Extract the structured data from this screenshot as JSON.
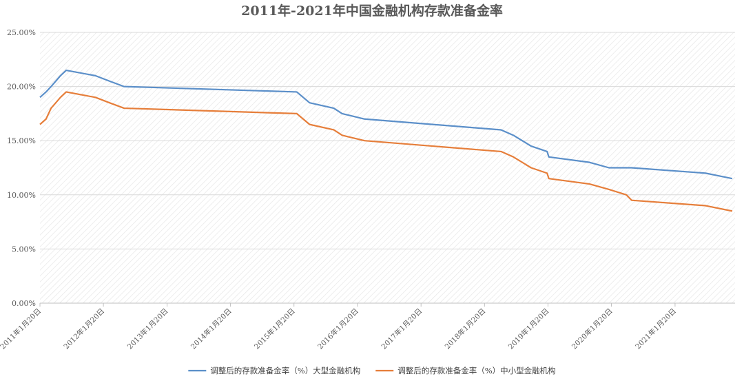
{
  "chart_data": {
    "type": "line",
    "title": "2011年-2021年中国金融机构存款准备金率",
    "xlabel": "",
    "ylabel": "",
    "ylim": [
      0,
      25
    ],
    "y_ticks": [
      "0.00%",
      "5.00%",
      "10.00%",
      "15.00%",
      "20.00%",
      "25.00%"
    ],
    "x_range": [
      "2011-01-20",
      "2021-12-31"
    ],
    "x_ticks": [
      {
        "date": "2011-01-20",
        "label": "2011年1月20日"
      },
      {
        "date": "2012-01-20",
        "label": "2012年1月20日"
      },
      {
        "date": "2013-01-20",
        "label": "2013年1月20日"
      },
      {
        "date": "2014-01-20",
        "label": "2014年1月20日"
      },
      {
        "date": "2015-01-20",
        "label": "2015年1月20日"
      },
      {
        "date": "2016-01-20",
        "label": "2016年1月20日"
      },
      {
        "date": "2017-01-20",
        "label": "2017年1月20日"
      },
      {
        "date": "2018-01-20",
        "label": "2018年1月20日"
      },
      {
        "date": "2019-01-20",
        "label": "2019年1月20日"
      },
      {
        "date": "2020-01-20",
        "label": "2020年1月20日"
      },
      {
        "date": "2021-01-20",
        "label": "2021年1月20日"
      }
    ],
    "grid": true,
    "legend_position": "bottom",
    "series": [
      {
        "name": "调整后的存款准备金率（%）大型金融机构",
        "color": "#5B8FC9",
        "points": [
          {
            "x": "2011-01-20",
            "y": 19.0
          },
          {
            "x": "2011-02-24",
            "y": 19.5
          },
          {
            "x": "2011-03-25",
            "y": 20.0
          },
          {
            "x": "2011-04-21",
            "y": 20.5
          },
          {
            "x": "2011-05-18",
            "y": 21.0
          },
          {
            "x": "2011-06-20",
            "y": 21.5
          },
          {
            "x": "2011-12-05",
            "y": 21.0
          },
          {
            "x": "2012-02-24",
            "y": 20.5
          },
          {
            "x": "2012-05-18",
            "y": 20.0
          },
          {
            "x": "2015-02-05",
            "y": 19.5
          },
          {
            "x": "2015-04-20",
            "y": 18.5
          },
          {
            "x": "2015-09-06",
            "y": 18.0
          },
          {
            "x": "2015-10-24",
            "y": 17.5
          },
          {
            "x": "2016-03-01",
            "y": 17.0
          },
          {
            "x": "2018-04-25",
            "y": 16.0
          },
          {
            "x": "2018-07-05",
            "y": 15.5
          },
          {
            "x": "2018-10-15",
            "y": 14.5
          },
          {
            "x": "2019-01-15",
            "y": 14.0
          },
          {
            "x": "2019-01-25",
            "y": 13.5
          },
          {
            "x": "2019-09-16",
            "y": 13.0
          },
          {
            "x": "2020-01-06",
            "y": 12.5
          },
          {
            "x": "2020-05-15",
            "y": 12.5
          },
          {
            "x": "2021-07-15",
            "y": 12.0
          },
          {
            "x": "2021-12-15",
            "y": 11.5
          }
        ]
      },
      {
        "name": "调整后的存款准备金率（%）中小型金融机构",
        "color": "#E67E3A",
        "points": [
          {
            "x": "2011-01-20",
            "y": 16.5
          },
          {
            "x": "2011-02-24",
            "y": 17.0
          },
          {
            "x": "2011-03-25",
            "y": 18.0
          },
          {
            "x": "2011-04-21",
            "y": 18.5
          },
          {
            "x": "2011-05-18",
            "y": 19.0
          },
          {
            "x": "2011-06-20",
            "y": 19.5
          },
          {
            "x": "2011-12-05",
            "y": 19.0
          },
          {
            "x": "2012-02-24",
            "y": 18.5
          },
          {
            "x": "2012-05-18",
            "y": 18.0
          },
          {
            "x": "2015-02-05",
            "y": 17.5
          },
          {
            "x": "2015-04-20",
            "y": 16.5
          },
          {
            "x": "2015-09-06",
            "y": 16.0
          },
          {
            "x": "2015-10-24",
            "y": 15.5
          },
          {
            "x": "2016-03-01",
            "y": 15.0
          },
          {
            "x": "2018-04-25",
            "y": 14.0
          },
          {
            "x": "2018-07-05",
            "y": 13.5
          },
          {
            "x": "2018-10-15",
            "y": 12.5
          },
          {
            "x": "2019-01-15",
            "y": 12.0
          },
          {
            "x": "2019-01-25",
            "y": 11.5
          },
          {
            "x": "2019-09-16",
            "y": 11.0
          },
          {
            "x": "2020-01-06",
            "y": 10.5
          },
          {
            "x": "2020-04-15",
            "y": 10.0
          },
          {
            "x": "2020-05-15",
            "y": 9.5
          },
          {
            "x": "2021-07-15",
            "y": 9.0
          },
          {
            "x": "2021-12-15",
            "y": 8.5
          }
        ]
      }
    ]
  }
}
